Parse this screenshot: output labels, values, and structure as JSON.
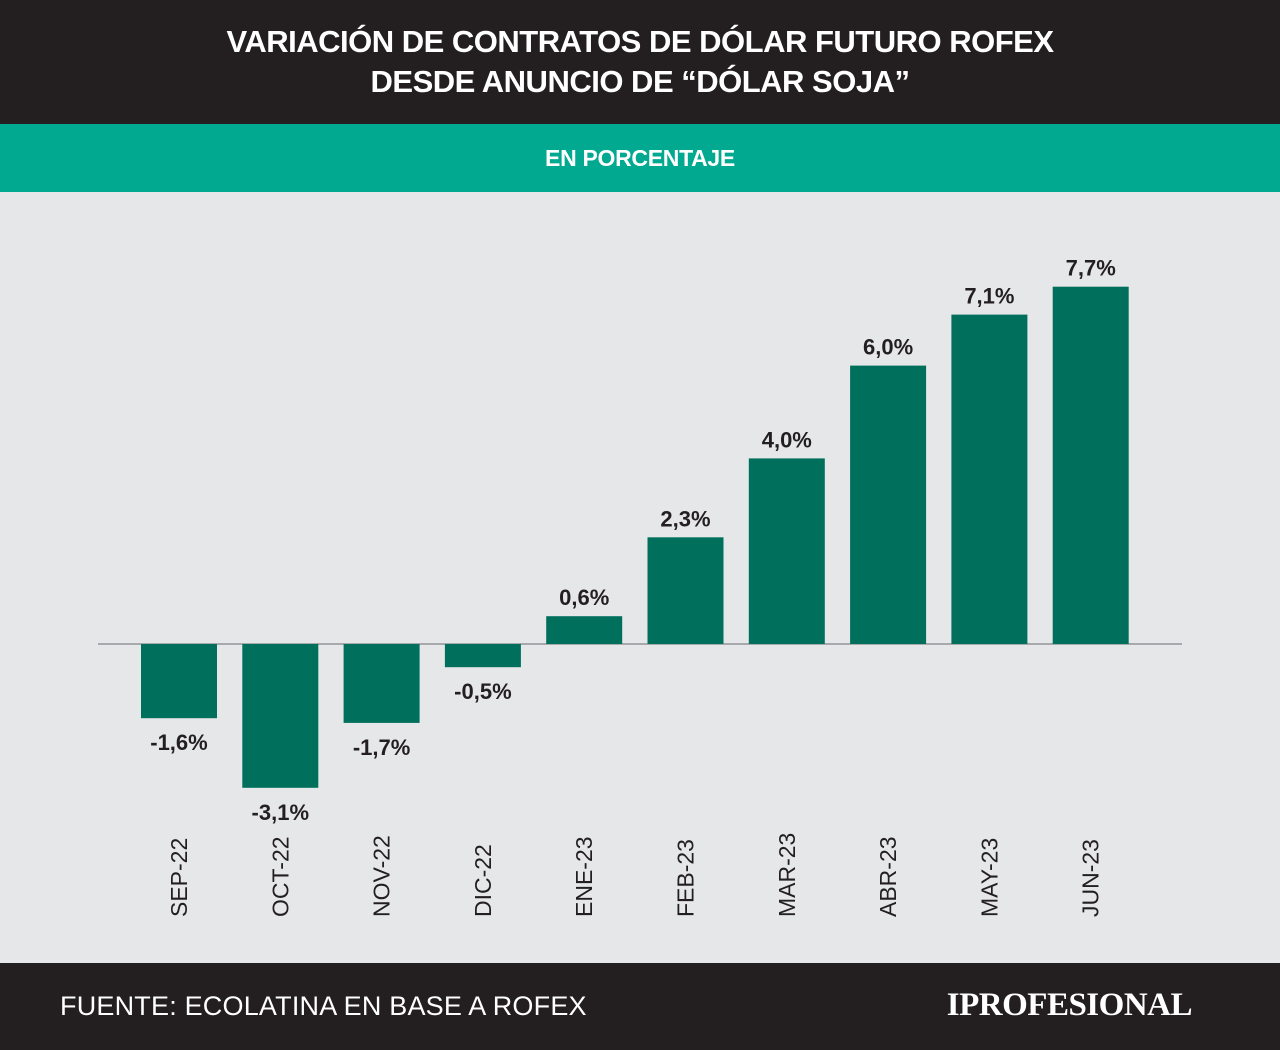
{
  "header": {
    "title_line1": "VARIACIÓN DE CONTRATOS DE DÓLAR FUTURO ROFEX",
    "title_line2": "DESDE ANUNCIO DE “DÓLAR SOJA”",
    "subtitle": "EN PORCENTAJE"
  },
  "footer": {
    "source": "FUENTE: ECOLATINA EN BASE A ROFEX",
    "logo": "IPROFESIONAL"
  },
  "colors": {
    "header_background": "#231f20",
    "subtitle_background": "#00a98f",
    "chart_background": "#e6e7e9",
    "bar": "#00705c",
    "label_text": "#231f20",
    "baseline": "#a7a9ac"
  },
  "chart_data": {
    "type": "bar",
    "title": "VARIACIÓN DE CONTRATOS DE DÓLAR FUTURO ROFEX DESDE ANUNCIO DE “DÓLAR SOJA”",
    "subtitle": "EN PORCENTAJE",
    "xlabel": "",
    "ylabel": "",
    "unit": "%",
    "categories": [
      "SEP-22",
      "OCT-22",
      "NOV-22",
      "DIC-22",
      "ENE-23",
      "FEB-23",
      "MAR-23",
      "ABR-23",
      "MAY-23",
      "JUN-23"
    ],
    "values": [
      -1.6,
      -3.1,
      -1.7,
      -0.5,
      0.6,
      2.3,
      4.0,
      6.0,
      7.1,
      7.7
    ],
    "data_labels": [
      "-1,6%",
      "-3,1%",
      "-1,7%",
      "-0,5%",
      "0,6%",
      "2,3%",
      "4,0%",
      "6,0%",
      "7,1%",
      "7,7%"
    ],
    "ylim": [
      -3.1,
      7.7
    ],
    "grid": false,
    "legend": "none",
    "category_label_orientation": "vertical"
  }
}
